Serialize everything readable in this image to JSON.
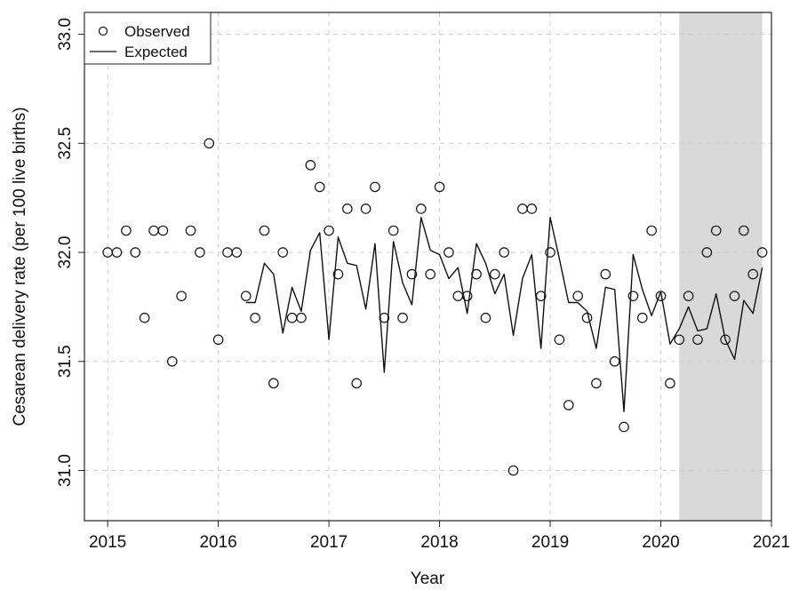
{
  "chart_data": {
    "type": "scatter",
    "title": "",
    "xlabel": "Year",
    "ylabel": "Cesarean delivery rate (per 100 live births)",
    "xlim": [
      2014.79,
      2021.0
    ],
    "ylim": [
      30.77,
      33.1
    ],
    "x_ticks": [
      "2015",
      "2016",
      "2017",
      "2018",
      "2019",
      "2020",
      "2021"
    ],
    "y_ticks": [
      "31.0",
      "31.5",
      "32.0",
      "32.5",
      "33.0"
    ],
    "grid": true,
    "legend_position": "top-left",
    "shaded_region": {
      "x_start": "2020-03",
      "x_end": "2020-12",
      "color": "#d9d9d9"
    },
    "dates": [
      "2015-01",
      "2015-02",
      "2015-03",
      "2015-04",
      "2015-05",
      "2015-06",
      "2015-07",
      "2015-08",
      "2015-09",
      "2015-10",
      "2015-11",
      "2015-12",
      "2016-01",
      "2016-02",
      "2016-03",
      "2016-04",
      "2016-05",
      "2016-06",
      "2016-07",
      "2016-08",
      "2016-09",
      "2016-10",
      "2016-11",
      "2016-12",
      "2017-01",
      "2017-02",
      "2017-03",
      "2017-04",
      "2017-05",
      "2017-06",
      "2017-07",
      "2017-08",
      "2017-09",
      "2017-10",
      "2017-11",
      "2017-12",
      "2018-01",
      "2018-02",
      "2018-03",
      "2018-04",
      "2018-05",
      "2018-06",
      "2018-07",
      "2018-08",
      "2018-09",
      "2018-10",
      "2018-11",
      "2018-12",
      "2019-01",
      "2019-02",
      "2019-03",
      "2019-04",
      "2019-05",
      "2019-06",
      "2019-07",
      "2019-08",
      "2019-09",
      "2019-10",
      "2019-11",
      "2019-12",
      "2020-01",
      "2020-02",
      "2020-03",
      "2020-04",
      "2020-05",
      "2020-06",
      "2020-07",
      "2020-08",
      "2020-09",
      "2020-10",
      "2020-11",
      "2020-12"
    ],
    "series": [
      {
        "name": "Observed",
        "kind": "points",
        "values": [
          32.0,
          32.0,
          32.1,
          32.0,
          31.7,
          32.1,
          32.1,
          31.5,
          31.8,
          32.1,
          32.0,
          32.5,
          31.6,
          32.0,
          32.0,
          31.8,
          31.7,
          32.1,
          31.4,
          32.0,
          31.7,
          31.7,
          32.4,
          32.3,
          32.1,
          31.9,
          32.2,
          31.4,
          32.2,
          32.3,
          31.7,
          32.1,
          31.7,
          31.9,
          32.2,
          31.9,
          32.3,
          32.0,
          31.8,
          31.8,
          31.9,
          31.7,
          31.9,
          32.0,
          31.0,
          32.2,
          32.2,
          31.8,
          32.0,
          31.6,
          31.3,
          31.8,
          31.7,
          31.4,
          31.9,
          31.5,
          31.2,
          31.8,
          31.7,
          32.1,
          31.8,
          31.4,
          31.6,
          31.8,
          31.6,
          32.0,
          32.1,
          31.6,
          31.8,
          32.1,
          31.9,
          32.0
        ]
      },
      {
        "name": "Expected",
        "kind": "line",
        "values": [
          null,
          null,
          null,
          null,
          null,
          null,
          null,
          null,
          null,
          null,
          null,
          null,
          null,
          null,
          null,
          31.77,
          31.77,
          31.95,
          31.9,
          31.63,
          31.84,
          31.73,
          32.01,
          32.09,
          31.6,
          32.07,
          31.95,
          31.94,
          31.74,
          32.04,
          31.45,
          32.05,
          31.86,
          31.76,
          32.16,
          32.01,
          31.99,
          31.88,
          31.93,
          31.72,
          32.04,
          31.95,
          31.81,
          31.9,
          31.62,
          31.88,
          31.99,
          31.56,
          32.16,
          31.97,
          31.77,
          31.77,
          31.73,
          31.56,
          31.84,
          31.83,
          31.27,
          31.99,
          31.83,
          31.71,
          31.82,
          31.58,
          31.65,
          31.75,
          31.64,
          31.65,
          31.81,
          31.6,
          31.51,
          31.78,
          31.72,
          31.93
        ]
      }
    ]
  }
}
